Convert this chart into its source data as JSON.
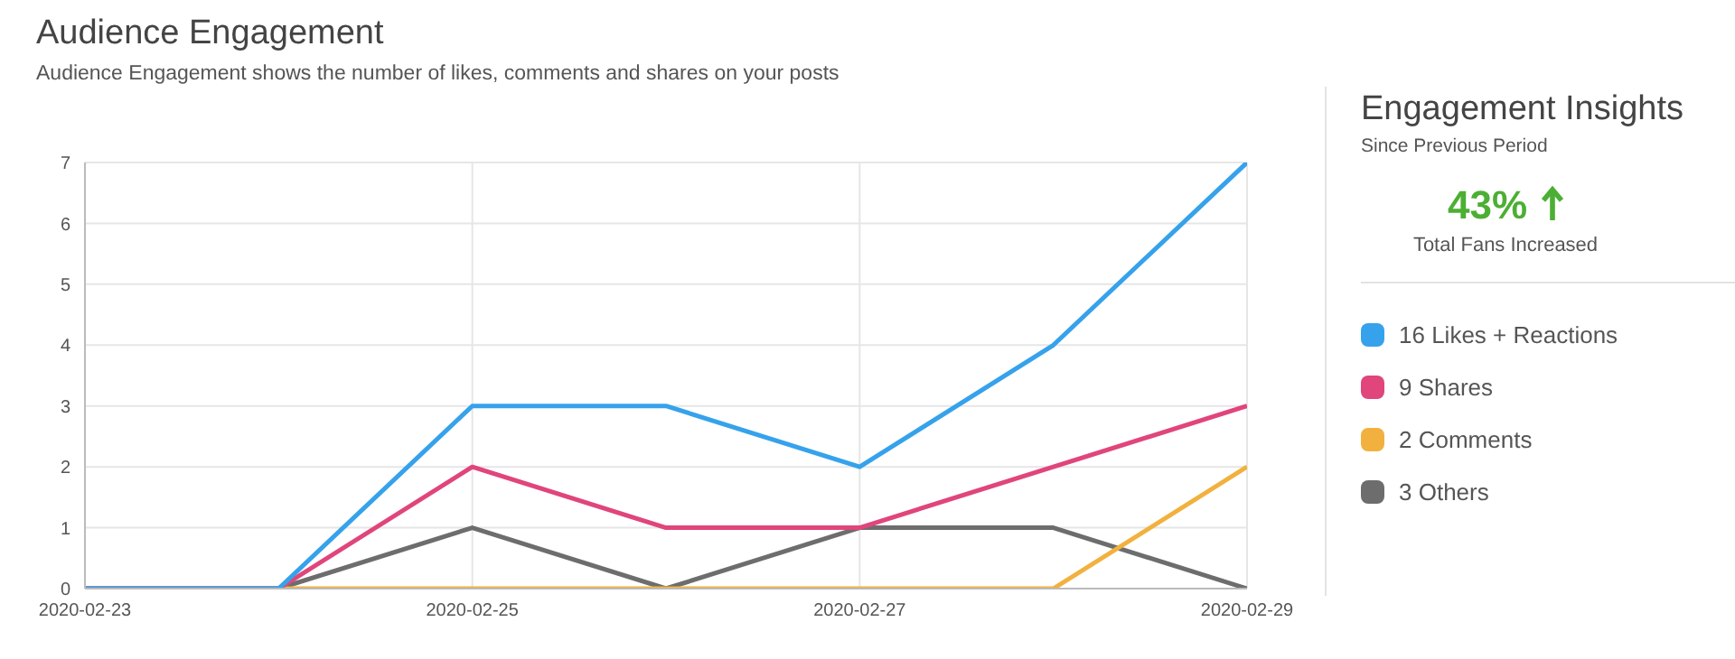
{
  "chart_data": {
    "type": "line",
    "title": "Audience Engagement",
    "subtitle": "Audience Engagement shows the number of likes, comments and shares on your posts",
    "x": [
      "2020-02-23",
      "2020-02-24",
      "2020-02-25",
      "2020-02-26",
      "2020-02-27",
      "2020-02-28",
      "2020-02-29"
    ],
    "series": [
      {
        "name": "16 Likes + Reactions",
        "color": "#36a2eb",
        "values": [
          0,
          0,
          3,
          3,
          2,
          4,
          7
        ]
      },
      {
        "name": "9 Shares",
        "color": "#e0457b",
        "values": [
          0,
          0,
          2,
          1,
          1,
          2,
          3
        ]
      },
      {
        "name": "2 Comments",
        "color": "#f2b13e",
        "values": [
          0,
          0,
          0,
          0,
          0,
          0,
          2
        ]
      },
      {
        "name": "3 Others",
        "color": "#6d6d6d",
        "values": [
          0,
          0,
          1,
          0,
          1,
          1,
          0
        ]
      }
    ],
    "xlim": [
      "2020-02-23",
      "2020-02-29"
    ],
    "xticks": [
      "2020-02-23",
      "2020-02-25",
      "2020-02-27",
      "2020-02-29"
    ],
    "ylim": [
      0,
      7
    ],
    "yticks": [
      0,
      1,
      2,
      3,
      4,
      5,
      6,
      7
    ],
    "grid": true,
    "legend": "right",
    "marker": "none",
    "line_style": "solid",
    "annotations": [
      "Engagement Insights",
      "Since Previous Period",
      "43%",
      "Total Fans Increased"
    ]
  }
}
